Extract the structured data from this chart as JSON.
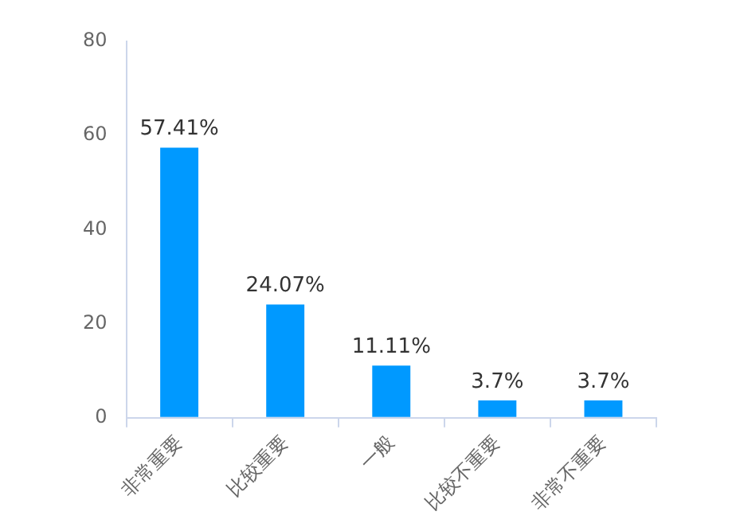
{
  "chart_data": {
    "type": "bar",
    "categories": [
      "非常重要",
      "比较重要",
      "一般",
      "比较不重要",
      "非常不重要"
    ],
    "values": [
      57.41,
      24.07,
      11.11,
      3.7,
      3.7
    ],
    "value_labels": [
      "57.41%",
      "24.07%",
      "11.11%",
      "3.7%",
      "3.7%"
    ],
    "color": "#0099ff",
    "ylim": [
      0,
      80
    ],
    "yticks": [
      0,
      20,
      40,
      60,
      80
    ],
    "grid": false,
    "legend": false
  }
}
